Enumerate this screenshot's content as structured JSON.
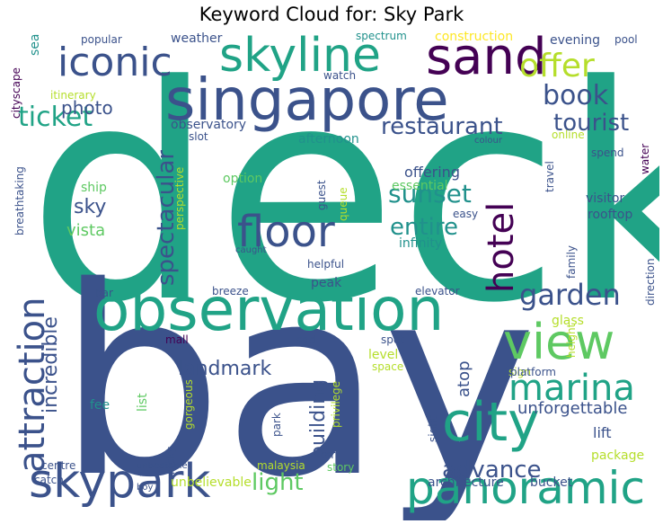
{
  "title": "Keyword Cloud for: Sky Park",
  "palette": [
    "#20a386",
    "#3b528b",
    "#440154",
    "#5ec962",
    "#b5de2b",
    "#21918c",
    "#2c728e",
    "#fde725"
  ],
  "words": [
    {
      "text": "deck",
      "color": "#20a386"
    },
    {
      "text": "bay",
      "color": "#3b528b"
    },
    {
      "text": "observation",
      "color": "#20a386"
    },
    {
      "text": "singapore",
      "color": "#3b528b"
    },
    {
      "text": "skyline",
      "color": "#20a386"
    },
    {
      "text": "sand",
      "color": "#440154"
    },
    {
      "text": "iconic",
      "color": "#3b528b"
    },
    {
      "text": "offer",
      "color": "#b5de2b"
    },
    {
      "text": "view",
      "color": "#5ec962"
    },
    {
      "text": "city",
      "color": "#20a386"
    },
    {
      "text": "panoramic",
      "color": "#20a386"
    },
    {
      "text": "skypark",
      "color": "#3b528b"
    },
    {
      "text": "marina",
      "color": "#20a386"
    },
    {
      "text": "floor",
      "color": "#3b528b"
    },
    {
      "text": "attraction",
      "color": "#3b528b"
    },
    {
      "text": "hotel",
      "color": "#440154"
    },
    {
      "text": "garden",
      "color": "#3b528b"
    },
    {
      "text": "book",
      "color": "#3b528b"
    },
    {
      "text": "ticket",
      "color": "#20a386"
    },
    {
      "text": "tourist",
      "color": "#3b528b"
    },
    {
      "text": "restaurant",
      "color": "#3b528b"
    },
    {
      "text": "sunset",
      "color": "#21918c"
    },
    {
      "text": "spectacular",
      "color": "#3b528b"
    },
    {
      "text": "entire",
      "color": "#21918c"
    },
    {
      "text": "advance",
      "color": "#3b528b"
    },
    {
      "text": "light",
      "color": "#5ec962"
    },
    {
      "text": "incredible",
      "color": "#3b528b"
    },
    {
      "text": "building",
      "color": "#3b528b"
    },
    {
      "text": "landmark",
      "color": "#3b528b"
    },
    {
      "text": "photo",
      "color": "#3b528b"
    },
    {
      "text": "sky",
      "color": "#3b528b"
    },
    {
      "text": "vista",
      "color": "#5ec962"
    },
    {
      "text": "lift",
      "color": "#3b528b"
    },
    {
      "text": "atop",
      "color": "#3b528b"
    },
    {
      "text": "unforgettable",
      "color": "#3b528b"
    },
    {
      "text": "offering",
      "color": "#3b528b"
    },
    {
      "text": "essential",
      "color": "#5ec962"
    },
    {
      "text": "observatory",
      "color": "#3b528b"
    },
    {
      "text": "afternoon",
      "color": "#21918c"
    },
    {
      "text": "weather",
      "color": "#3b528b"
    },
    {
      "text": "popular",
      "color": "#3b528b"
    },
    {
      "text": "spectrum",
      "color": "#21918c"
    },
    {
      "text": "construction",
      "color": "#fde725"
    },
    {
      "text": "evening",
      "color": "#3b528b"
    },
    {
      "text": "pool",
      "color": "#3b528b"
    },
    {
      "text": "sea",
      "color": "#21918c"
    },
    {
      "text": "cityscape",
      "color": "#440154"
    },
    {
      "text": "itinerary",
      "color": "#b5de2b"
    },
    {
      "text": "watch",
      "color": "#3b528b"
    },
    {
      "text": "slot",
      "color": "#3b528b"
    },
    {
      "text": "colour",
      "color": "#3b528b"
    },
    {
      "text": "online",
      "color": "#b5de2b"
    },
    {
      "text": "water",
      "color": "#440154"
    },
    {
      "text": "travel",
      "color": "#3b528b"
    },
    {
      "text": "spend",
      "color": "#3b528b"
    },
    {
      "text": "option",
      "color": "#5ec962"
    },
    {
      "text": "perspective",
      "color": "#b5de2b"
    },
    {
      "text": "guest",
      "color": "#3b528b"
    },
    {
      "text": "queue",
      "color": "#b5de2b"
    },
    {
      "text": "easy",
      "color": "#3b528b"
    },
    {
      "text": "visitor",
      "color": "#3b528b"
    },
    {
      "text": "rooftop",
      "color": "#3b528b"
    },
    {
      "text": "infinity",
      "color": "#21918c"
    },
    {
      "text": "ship",
      "color": "#5ec962"
    },
    {
      "text": "breathtaking",
      "color": "#3b528b"
    },
    {
      "text": "caught",
      "color": "#3b528b"
    },
    {
      "text": "helpful",
      "color": "#3b528b"
    },
    {
      "text": "peak",
      "color": "#3b528b"
    },
    {
      "text": "elevator",
      "color": "#3b528b"
    },
    {
      "text": "family",
      "color": "#3b528b"
    },
    {
      "text": "direction",
      "color": "#3b528b"
    },
    {
      "text": "glass",
      "color": "#b5de2b"
    },
    {
      "text": "bar",
      "color": "#3b528b"
    },
    {
      "text": "breeze",
      "color": "#3b528b"
    },
    {
      "text": "sgd",
      "color": "#3b528b"
    },
    {
      "text": "spot",
      "color": "#3b528b"
    },
    {
      "text": "mall",
      "color": "#440154"
    },
    {
      "text": "height",
      "color": "#b5de2b"
    },
    {
      "text": "level",
      "color": "#b5de2b"
    },
    {
      "text": "space",
      "color": "#b5de2b"
    },
    {
      "text": "sign",
      "color": "#b5de2b"
    },
    {
      "text": "platform",
      "color": "#3b528b"
    },
    {
      "text": "list",
      "color": "#5ec962"
    },
    {
      "text": "fee",
      "color": "#21918c"
    },
    {
      "text": "gorgeous",
      "color": "#b5de2b"
    },
    {
      "text": "lucky",
      "color": "#3b528b"
    },
    {
      "text": "park",
      "color": "#3b528b"
    },
    {
      "text": "privilege",
      "color": "#b5de2b"
    },
    {
      "text": "star",
      "color": "#3b528b"
    },
    {
      "text": "sight",
      "color": "#3b528b"
    },
    {
      "text": "story",
      "color": "#5ec962"
    },
    {
      "text": "malaysia",
      "color": "#b5de2b"
    },
    {
      "text": "package",
      "color": "#b5de2b"
    },
    {
      "text": "centre",
      "color": "#3b528b"
    },
    {
      "text": "unbeatable",
      "color": "#3b528b"
    },
    {
      "text": "catch",
      "color": "#3b528b"
    },
    {
      "text": "boy",
      "color": "#3b528b"
    },
    {
      "text": "unbelievable",
      "color": "#b5de2b"
    },
    {
      "text": "architecture",
      "color": "#3b528b"
    },
    {
      "text": "bucket",
      "color": "#3b528b"
    }
  ]
}
